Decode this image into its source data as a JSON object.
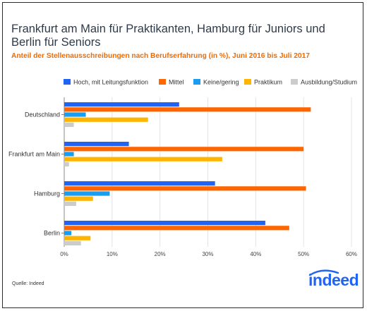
{
  "header": {
    "title": "Frankfurt am Main für Praktikanten, Hamburg für Juniors und Berlin für Seniors",
    "subtitle": "Anteil der Stellenausschreibungen nach Berufserfahrung (in %), Juni 2016 bis Juli 2017"
  },
  "footer": {
    "source": "Quelle: Indeed",
    "logo_text": "indeed"
  },
  "chart_data": {
    "type": "bar",
    "orientation": "horizontal",
    "title": "Frankfurt am Main für Praktikanten, Hamburg für Juniors und Berlin für Seniors",
    "subtitle": "Anteil der Stellenausschreibungen nach Berufserfahrung (in %), Juni 2016 bis Juli 2017",
    "categories": [
      "Deutschland",
      "Frankfurt am Main",
      "Hamburg",
      "Berlin"
    ],
    "series": [
      {
        "name": "Hoch, mit Leitungsfunktion",
        "color": "#2164f3",
        "values": [
          24,
          13.5,
          31.5,
          42
        ]
      },
      {
        "name": "Mittel",
        "color": "#ff6600",
        "values": [
          51.5,
          50,
          50.5,
          47
        ]
      },
      {
        "name": "Keine/gering",
        "color": "#1a9cf0",
        "values": [
          4.5,
          2,
          9.5,
          1.5
        ]
      },
      {
        "name": "Praktikum",
        "color": "#ffb400",
        "values": [
          17.5,
          33,
          6,
          5.5
        ]
      },
      {
        "name": "Ausbildung/Studium",
        "color": "#cccccc",
        "values": [
          2,
          1,
          2.5,
          3.5
        ]
      }
    ],
    "xlim": [
      0,
      60
    ],
    "x_ticks": [
      "0%",
      "10%",
      "20%",
      "30%",
      "40%",
      "50%",
      "60%"
    ],
    "grid": true,
    "legend_position": "top"
  }
}
